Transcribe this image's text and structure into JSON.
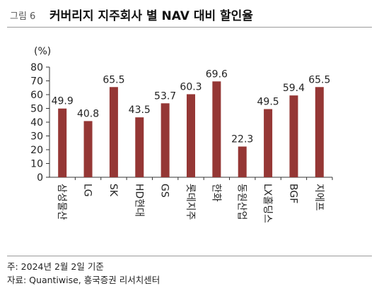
{
  "header": {
    "figure_label": "그림 6",
    "title": "커버리지 지주회사 별 NAV 대비 할인율"
  },
  "chart_data": {
    "type": "bar",
    "unit_label": "(%)",
    "categories": [
      "삼성물산",
      "LG",
      "SK",
      "HD현대",
      "GS",
      "롯데지주",
      "한화",
      "동원산업",
      "LX홀딩스",
      "BGF",
      "지에프"
    ],
    "values": [
      49.9,
      40.8,
      65.5,
      43.5,
      53.7,
      60.3,
      69.6,
      22.3,
      49.5,
      59.4,
      65.5
    ],
    "value_labels": [
      "49.9",
      "40.8",
      "65.5",
      "43.5",
      "53.7",
      "60.3",
      "69.6",
      "22.3",
      "49.5",
      "59.4",
      "65.5"
    ],
    "yticks": [
      "0",
      "10",
      "20",
      "30",
      "40",
      "50",
      "60",
      "70",
      "80"
    ],
    "ylim": [
      0,
      80
    ],
    "bar_color": "#953735",
    "grid": false,
    "xlabel": "",
    "ylabel": ""
  },
  "footer": {
    "note": "주: 2024년 2월 2일 기준",
    "source": "자료: Quantiwise, 흥국증권 리서치센터"
  }
}
